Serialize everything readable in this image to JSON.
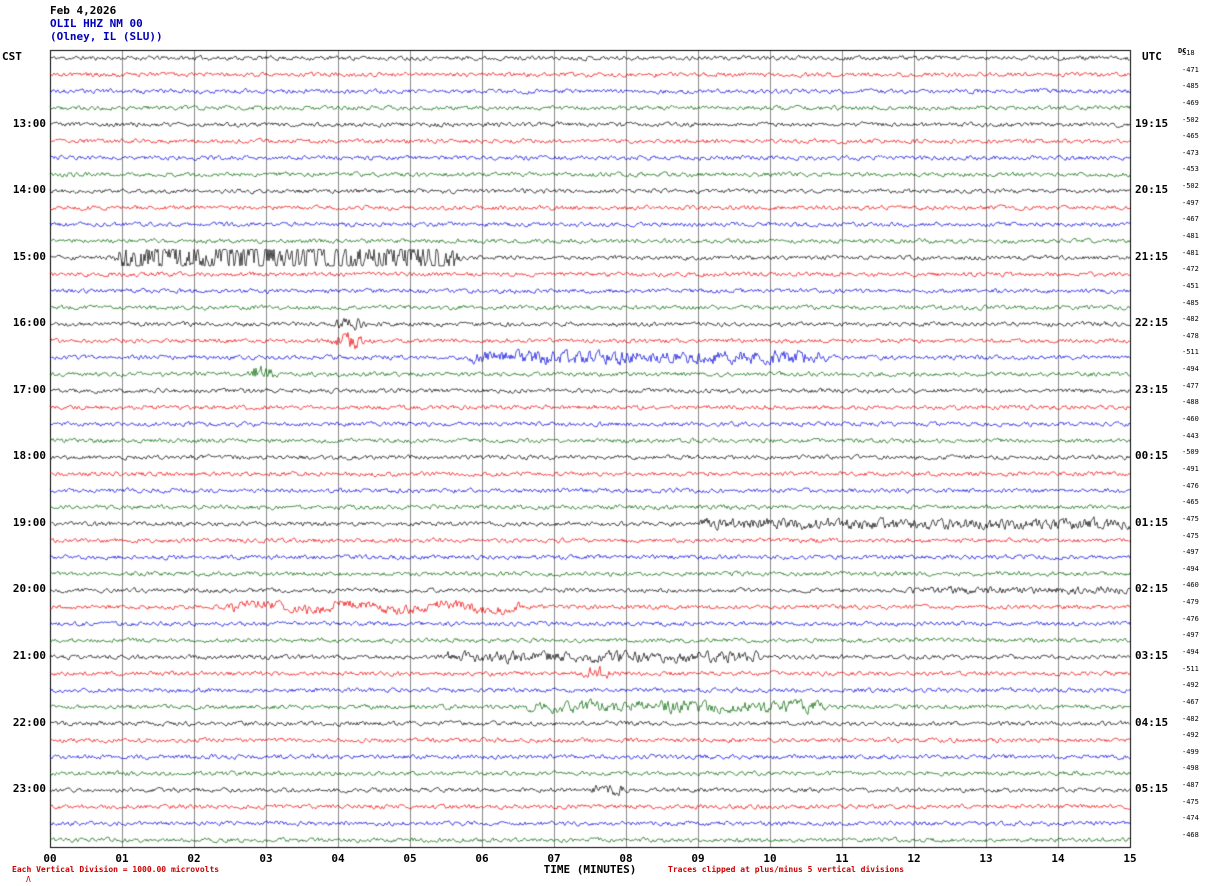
{
  "header": {
    "date": "Feb 4,2026",
    "station": "OLIL HHZ NM 00",
    "location": "(Olney, IL (SLU))"
  },
  "axes": {
    "left_tz": "CST",
    "right_tz": "UTC",
    "dc_label": "DC",
    "x_title": "TIME (MINUTES)",
    "x_ticks": [
      "00",
      "01",
      "02",
      "03",
      "04",
      "05",
      "06",
      "07",
      "08",
      "09",
      "10",
      "11",
      "12",
      "13",
      "14",
      "15"
    ]
  },
  "footer": {
    "left_note": "Each Vertical Division = 1000.00 microvolts",
    "right_note": "Traces clipped at plus/minus 5 vertical divisions",
    "logo_mark": "Λ"
  },
  "chart_data": {
    "type": "line",
    "title": "OLIL HHZ NM 00 (Olney, IL (SLU)) helicorder plot, Feb 4,2026",
    "xlabel": "TIME (MINUTES)",
    "x_range_minutes": [
      0,
      15
    ],
    "rows": 48,
    "minutes_per_row": 15,
    "colors_cycle": [
      "#000000",
      "#ee0000",
      "#0000dd",
      "#006600"
    ],
    "left_times": [
      {
        "row": 4,
        "label": "13:00"
      },
      {
        "row": 8,
        "label": "14:00"
      },
      {
        "row": 12,
        "label": "15:00"
      },
      {
        "row": 16,
        "label": "16:00"
      },
      {
        "row": 20,
        "label": "17:00"
      },
      {
        "row": 24,
        "label": "18:00"
      },
      {
        "row": 28,
        "label": "19:00"
      },
      {
        "row": 32,
        "label": "20:00"
      },
      {
        "row": 36,
        "label": "21:00"
      },
      {
        "row": 40,
        "label": "22:00"
      },
      {
        "row": 44,
        "label": "23:00"
      }
    ],
    "right_times": [
      {
        "row": 4,
        "label": "19:15"
      },
      {
        "row": 8,
        "label": "20:15"
      },
      {
        "row": 12,
        "label": "21:15"
      },
      {
        "row": 16,
        "label": "22:15"
      },
      {
        "row": 20,
        "label": "23:15"
      },
      {
        "row": 24,
        "label": "00:15"
      },
      {
        "row": 28,
        "label": "01:15"
      },
      {
        "row": 32,
        "label": "02:15"
      },
      {
        "row": 36,
        "label": "03:15"
      },
      {
        "row": 40,
        "label": "04:15"
      },
      {
        "row": 44,
        "label": "05:15"
      }
    ],
    "dc_offsets": [
      518,
      -471,
      -485,
      -469,
      -502,
      -465,
      -473,
      -453,
      -502,
      -497,
      -467,
      -481,
      -481,
      -472,
      -451,
      -485,
      -482,
      -478,
      -511,
      -494,
      -477,
      -488,
      -460,
      -443,
      -509,
      -491,
      -476,
      -465,
      -475,
      -475,
      -497,
      -494,
      -460,
      -479,
      -476,
      -497,
      -494,
      -511,
      -492,
      -467,
      -482,
      -492,
      -499,
      -498,
      -487,
      -475,
      -474,
      -468
    ],
    "events": [
      {
        "row": 12,
        "start": 1.0,
        "end": 5.6,
        "amp": 7.0
      },
      {
        "row": 16,
        "start": 4.05,
        "end": 4.3,
        "amp": 3.0
      },
      {
        "row": 17,
        "start": 4.0,
        "end": 4.25,
        "amp": 4.0
      },
      {
        "row": 18,
        "start": 5.9,
        "end": 10.7,
        "amp": 3.2
      },
      {
        "row": 19,
        "start": 2.85,
        "end": 3.05,
        "amp": 4.0
      },
      {
        "row": 28,
        "start": 9.1,
        "end": 15.0,
        "amp": 2.6
      },
      {
        "row": 32,
        "start": 12.0,
        "end": 15.0,
        "amp": 1.8
      },
      {
        "row": 33,
        "start": 2.5,
        "end": 6.5,
        "amp": 2.2,
        "lowfreq": true
      },
      {
        "row": 36,
        "start": 5.5,
        "end": 9.8,
        "amp": 2.6
      },
      {
        "row": 37,
        "start": 7.5,
        "end": 7.7,
        "amp": 3.0
      },
      {
        "row": 39,
        "start": 6.7,
        "end": 10.7,
        "amp": 2.8
      },
      {
        "row": 44,
        "start": 7.6,
        "end": 7.9,
        "amp": 2.5
      }
    ],
    "clip_note": "Traces clipped at plus/minus 5 vertical divisions",
    "scale_note": "Each Vertical Division = 1000.00 microvolts"
  }
}
